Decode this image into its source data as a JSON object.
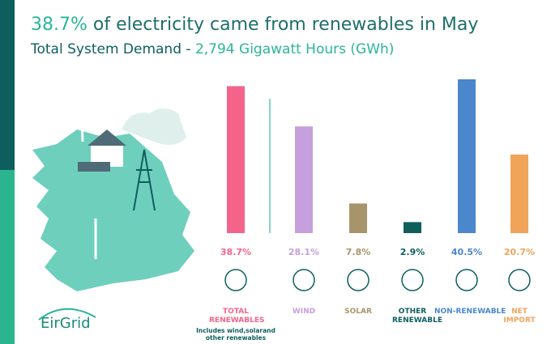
{
  "title_highlight": "38.7%",
  "title": "of electricity came from renewables in May",
  "subtitle": "Total System Demand -",
  "subtitle_highlight": "2,794 Gigawatt Hours (GWh)",
  "logo": "EirGrid",
  "chart_data": {
    "type": "bar",
    "categories": [
      "TOTAL RENEWABLES",
      "WIND",
      "SOLAR",
      "OTHER RENEWABLE",
      "NON-RENEWABLE",
      "NET IMPORT"
    ],
    "values": [
      38.7,
      28.1,
      7.8,
      2.9,
      40.5,
      20.7
    ],
    "value_labels": [
      "38.7%",
      "28.1%",
      "7.8%",
      "2.9%",
      "40.5%",
      "20.7%"
    ],
    "colors": [
      "#f4648a",
      "#c6a0dc",
      "#a8946a",
      "#0f5e5c",
      "#4a87cc",
      "#f0a45a"
    ],
    "note": "Includes wind,solarand other renewables"
  }
}
